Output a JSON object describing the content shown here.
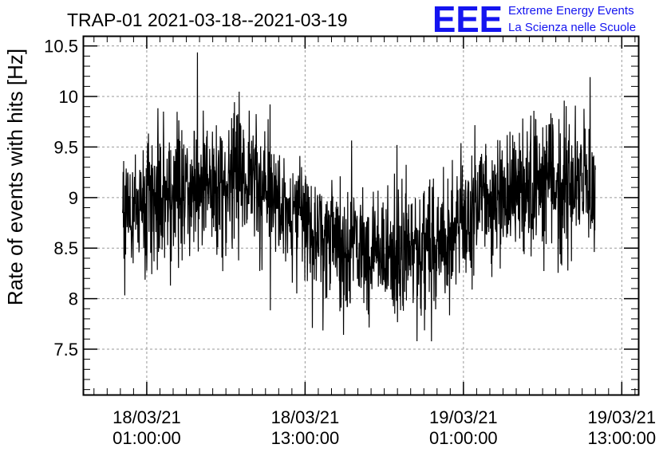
{
  "chart_data": {
    "type": "line",
    "title": "TRAP-01 2021-03-18--2021-03-19",
    "xlabel": "",
    "ylabel": "Rate of events with hits [Hz]",
    "ylim": [
      7.05,
      10.6
    ],
    "yticks": [
      7.5,
      8,
      8.5,
      9,
      9.5,
      10,
      10.5
    ],
    "ytick_labels": [
      "7.5",
      "8",
      "8.5",
      "9",
      "9.5",
      "10",
      "10.5"
    ],
    "xlim": [
      "2021-03-17T20:10:00",
      "2021-03-19T14:15:00"
    ],
    "xticks": [
      {
        "time": "2021-03-18T01:00:00",
        "date": "18/03/21",
        "clock": "01:00:00"
      },
      {
        "time": "2021-03-18T13:00:00",
        "date": "18/03/21",
        "clock": "13:00:00"
      },
      {
        "time": "2021-03-19T01:00:00",
        "date": "19/03/21",
        "clock": "01:00:00"
      },
      {
        "time": "2021-03-19T13:00:00",
        "date": "19/03/21",
        "clock": "13:00:00"
      }
    ],
    "grid": true,
    "series_color": "#000000",
    "x_start": "2021-03-17T23:10:00",
    "x_end": "2021-03-19T11:00:00",
    "trend": {
      "x": [
        "2021-03-17T23:10:00",
        "2021-03-18T03:00:00",
        "2021-03-18T06:00:00",
        "2021-03-18T09:00:00",
        "2021-03-18T11:00:00",
        "2021-03-18T13:00:00",
        "2021-03-18T16:00:00",
        "2021-03-18T19:00:00",
        "2021-03-18T22:00:00",
        "2021-03-19T00:00:00",
        "2021-03-19T02:00:00",
        "2021-03-19T04:00:00",
        "2021-03-19T07:00:00",
        "2021-03-19T11:00:00"
      ],
      "y": [
        8.8,
        9.05,
        9.15,
        9.15,
        9.0,
        8.75,
        8.5,
        8.5,
        8.45,
        8.55,
        8.9,
        9.05,
        9.15,
        9.05
      ]
    },
    "noise_amplitude": 0.33,
    "sample_count": 1700
  },
  "logo": {
    "mark": "EEE",
    "line1": "Extreme Energy Events",
    "line2": "La Scienza nelle Scuole",
    "color": "#1414f0"
  }
}
